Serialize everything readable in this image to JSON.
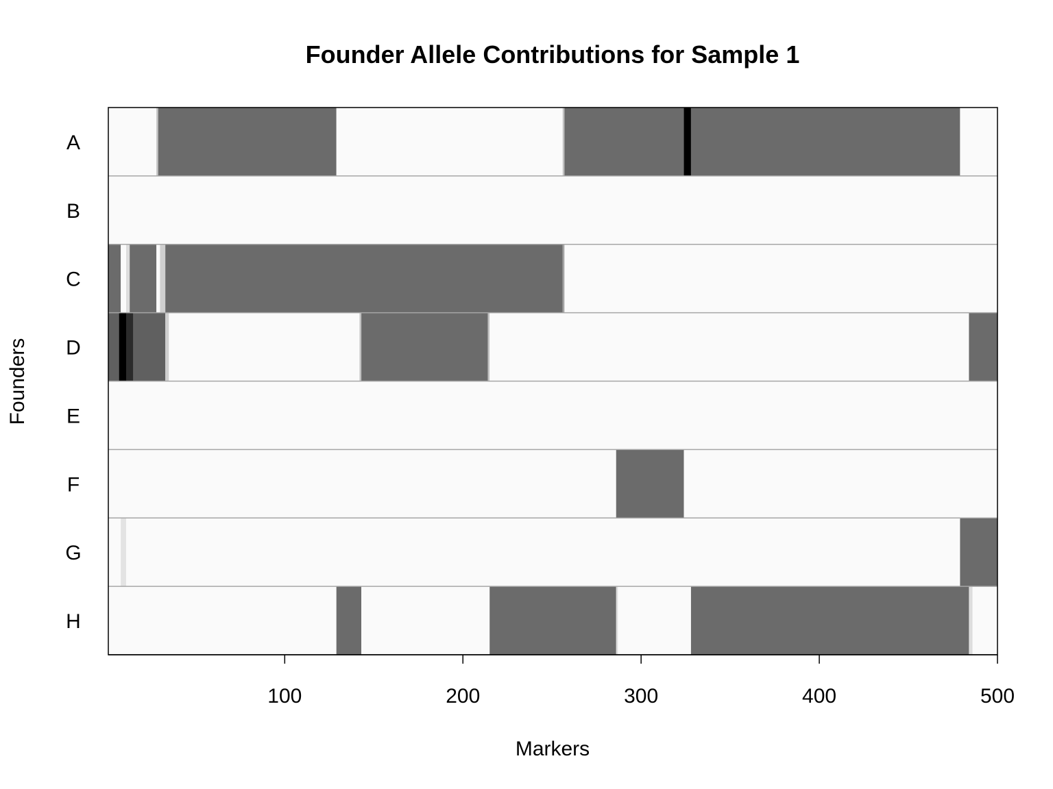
{
  "chart_data": {
    "type": "heatmap",
    "title": "Founder Allele Contributions for Sample 1",
    "xlabel": "Markers",
    "ylabel": "Founders",
    "xlim": [
      1,
      500
    ],
    "x_ticks": [
      100,
      200,
      300,
      400,
      500
    ],
    "rows": [
      "A",
      "B",
      "C",
      "D",
      "E",
      "F",
      "G",
      "H"
    ],
    "value_range": [
      0,
      1
    ],
    "color_scale": {
      "low": "#fafafa",
      "mid": "#6b6b6b",
      "high": "#000000"
    },
    "row_separator_color": "#a6a6a6",
    "segments": [
      {
        "row": "A",
        "start": 1,
        "end": 28,
        "value": 0
      },
      {
        "row": "A",
        "start": 28,
        "end": 29,
        "value": 0.2
      },
      {
        "row": "A",
        "start": 29,
        "end": 129,
        "value": 0.5
      },
      {
        "row": "A",
        "start": 129,
        "end": 256,
        "value": 0
      },
      {
        "row": "A",
        "start": 256,
        "end": 257,
        "value": 0.2
      },
      {
        "row": "A",
        "start": 257,
        "end": 324,
        "value": 0.5
      },
      {
        "row": "A",
        "start": 324,
        "end": 328,
        "value": 1
      },
      {
        "row": "A",
        "start": 328,
        "end": 479,
        "value": 0.5
      },
      {
        "row": "A",
        "start": 479,
        "end": 500,
        "value": 0
      },
      {
        "row": "B",
        "start": 1,
        "end": 500,
        "value": 0
      },
      {
        "row": "C",
        "start": 1,
        "end": 8,
        "value": 0.5
      },
      {
        "row": "C",
        "start": 8,
        "end": 11,
        "value": 0
      },
      {
        "row": "C",
        "start": 11,
        "end": 13,
        "value": 0.1
      },
      {
        "row": "C",
        "start": 13,
        "end": 28,
        "value": 0.5
      },
      {
        "row": "C",
        "start": 28,
        "end": 30,
        "value": 0
      },
      {
        "row": "C",
        "start": 30,
        "end": 33,
        "value": 0.15
      },
      {
        "row": "C",
        "start": 33,
        "end": 256,
        "value": 0.5
      },
      {
        "row": "C",
        "start": 256,
        "end": 257,
        "value": 0.3
      },
      {
        "row": "C",
        "start": 257,
        "end": 500,
        "value": 0
      },
      {
        "row": "D",
        "start": 1,
        "end": 7,
        "value": 0.55
      },
      {
        "row": "D",
        "start": 7,
        "end": 11,
        "value": 1
      },
      {
        "row": "D",
        "start": 11,
        "end": 15,
        "value": 0.8
      },
      {
        "row": "D",
        "start": 15,
        "end": 33,
        "value": 0.55
      },
      {
        "row": "D",
        "start": 33,
        "end": 35,
        "value": 0.15
      },
      {
        "row": "D",
        "start": 35,
        "end": 142,
        "value": 0
      },
      {
        "row": "D",
        "start": 142,
        "end": 143,
        "value": 0.2
      },
      {
        "row": "D",
        "start": 143,
        "end": 214,
        "value": 0.5
      },
      {
        "row": "D",
        "start": 214,
        "end": 215,
        "value": 0.2
      },
      {
        "row": "D",
        "start": 215,
        "end": 484,
        "value": 0
      },
      {
        "row": "D",
        "start": 484,
        "end": 500,
        "value": 0.5
      },
      {
        "row": "E",
        "start": 1,
        "end": 500,
        "value": 0
      },
      {
        "row": "F",
        "start": 1,
        "end": 286,
        "value": 0
      },
      {
        "row": "F",
        "start": 286,
        "end": 324,
        "value": 0.5
      },
      {
        "row": "F",
        "start": 324,
        "end": 500,
        "value": 0
      },
      {
        "row": "G",
        "start": 1,
        "end": 8,
        "value": 0
      },
      {
        "row": "G",
        "start": 8,
        "end": 11,
        "value": 0.08
      },
      {
        "row": "G",
        "start": 11,
        "end": 479,
        "value": 0
      },
      {
        "row": "G",
        "start": 479,
        "end": 500,
        "value": 0.5
      },
      {
        "row": "H",
        "start": 1,
        "end": 129,
        "value": 0
      },
      {
        "row": "H",
        "start": 129,
        "end": 143,
        "value": 0.5
      },
      {
        "row": "H",
        "start": 143,
        "end": 215,
        "value": 0
      },
      {
        "row": "H",
        "start": 215,
        "end": 286,
        "value": 0.5
      },
      {
        "row": "H",
        "start": 286,
        "end": 287,
        "value": 0.1
      },
      {
        "row": "H",
        "start": 287,
        "end": 328,
        "value": 0
      },
      {
        "row": "H",
        "start": 328,
        "end": 484,
        "value": 0.5
      },
      {
        "row": "H",
        "start": 484,
        "end": 486,
        "value": 0.1
      },
      {
        "row": "H",
        "start": 486,
        "end": 500,
        "value": 0
      }
    ]
  }
}
